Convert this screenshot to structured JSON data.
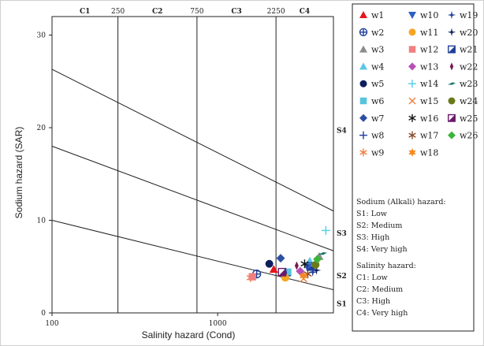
{
  "chart_data": {
    "type": "scatter",
    "title": "",
    "xlabel": "Salinity hazard (Cond)",
    "ylabel": "Sodium hazard (SAR)",
    "x_scale": "log",
    "xlim": [
      100,
      5000
    ],
    "ylim": [
      0,
      32
    ],
    "x_ticks": [
      {
        "value": 100,
        "label": "100"
      },
      {
        "value": 1000,
        "label": "1000"
      }
    ],
    "y_ticks": [
      {
        "value": 0,
        "label": "0"
      },
      {
        "value": 10,
        "label": "10"
      },
      {
        "value": 20,
        "label": "20"
      },
      {
        "value": 30,
        "label": "30"
      }
    ],
    "grid": false,
    "class_boundaries": [
      {
        "value": 250,
        "label": "250"
      },
      {
        "value": 750,
        "label": "750"
      },
      {
        "value": 2250,
        "label": "2250"
      }
    ],
    "salinity_classes": [
      {
        "label": "C1",
        "center": 158
      },
      {
        "label": "C2",
        "center": 433
      },
      {
        "label": "C3",
        "center": 1300
      },
      {
        "label": "C4",
        "center": 3350
      }
    ],
    "sodium_lines": [
      {
        "points": [
          [
            100,
            26.3
          ],
          [
            5000,
            11.0
          ]
        ]
      },
      {
        "points": [
          [
            100,
            18.0
          ],
          [
            5000,
            6.7
          ]
        ]
      },
      {
        "points": [
          [
            100,
            10.0
          ],
          [
            5000,
            2.5
          ]
        ]
      }
    ],
    "sodium_classes": [
      {
        "label": "S4",
        "y": 19.7
      },
      {
        "label": "S3",
        "y": 8.6
      },
      {
        "label": "S2",
        "y": 4.0
      },
      {
        "label": "S1",
        "y": 1.0
      }
    ],
    "series": [
      {
        "name": "w1",
        "color": "#e8141c",
        "marker": "triangle-up",
        "x": 2180,
        "y": 4.7
      },
      {
        "name": "w2",
        "color": "#1f3f9a",
        "marker": "circle-plus",
        "x": 1720,
        "y": 4.2
      },
      {
        "name": "w3",
        "color": "#8c8c8c",
        "marker": "triangle-up",
        "x": 4100,
        "y": 6.1
      },
      {
        "name": "w4",
        "color": "#5bc8e6",
        "marker": "triangle-up",
        "x": 3600,
        "y": 5.6
      },
      {
        "name": "w5",
        "color": "#0c1f5c",
        "marker": "circle",
        "x": 2050,
        "y": 5.3
      },
      {
        "name": "w6",
        "color": "#56c4dc",
        "marker": "square",
        "x": 2650,
        "y": 4.4
      },
      {
        "name": "w7",
        "color": "#2c4fa4",
        "marker": "diamond",
        "x": 2400,
        "y": 5.9
      },
      {
        "name": "w8",
        "color": "#1f3f9a",
        "marker": "plus",
        "x": 2600,
        "y": 4.0
      },
      {
        "name": "w9",
        "color": "#f08040",
        "marker": "asterisk",
        "x": 1580,
        "y": 3.8
      },
      {
        "name": "w10",
        "color": "#2c5fc4",
        "marker": "triangle-down",
        "x": 3500,
        "y": 4.9
      },
      {
        "name": "w11",
        "color": "#f5a623",
        "marker": "circle",
        "x": 2560,
        "y": 3.8
      },
      {
        "name": "w12",
        "color": "#f08080",
        "marker": "square",
        "x": 1620,
        "y": 3.9
      },
      {
        "name": "w13",
        "color": "#b84fb8",
        "marker": "diamond",
        "x": 3150,
        "y": 4.5
      },
      {
        "name": "w14",
        "color": "#4fd0e6",
        "marker": "plus",
        "x": 4500,
        "y": 8.9
      },
      {
        "name": "w15",
        "color": "#f08040",
        "marker": "x",
        "x": 3300,
        "y": 3.7
      },
      {
        "name": "w16",
        "color": "#111111",
        "marker": "asterisk",
        "x": 3350,
        "y": 5.3
      },
      {
        "name": "w17",
        "color": "#8a4a2a",
        "marker": "asterisk",
        "x": 3500,
        "y": 4.2
      },
      {
        "name": "w18",
        "color": "#f58a20",
        "marker": "star",
        "x": 3300,
        "y": 4.0
      },
      {
        "name": "w19",
        "color": "#1f3f9a",
        "marker": "star4",
        "x": 3750,
        "y": 4.4
      },
      {
        "name": "w20",
        "color": "#0c1f5c",
        "marker": "star4",
        "x": 3950,
        "y": 4.6
      },
      {
        "name": "w21",
        "color": "#1f3f9a",
        "marker": "square-half",
        "x": 3650,
        "y": 5.0
      },
      {
        "name": "w22",
        "color": "#7a1a50",
        "marker": "diamond-thin",
        "x": 3000,
        "y": 5.1
      },
      {
        "name": "w23",
        "color": "#1a7a6a",
        "marker": "arrow",
        "x": 4300,
        "y": 6.4
      },
      {
        "name": "w24",
        "color": "#6a7a1a",
        "marker": "circle",
        "x": 3900,
        "y": 5.2
      },
      {
        "name": "w25",
        "color": "#6a1a6a",
        "marker": "square-half",
        "x": 2450,
        "y": 4.4
      },
      {
        "name": "w26",
        "color": "#3cb43c",
        "marker": "diamond",
        "x": 4000,
        "y": 5.8
      }
    ],
    "legend": {
      "placement": "right",
      "sodium_title": "Sodium (Alkali) hazard:",
      "sodium_items": [
        "S1: Low",
        "S2: Medium",
        "S3: High",
        "S4: Very high"
      ],
      "salinity_title": "Salinity hazard:",
      "salinity_items": [
        "C1: Low",
        "C2: Medium",
        "C3: High",
        "C4: Very high"
      ]
    }
  }
}
